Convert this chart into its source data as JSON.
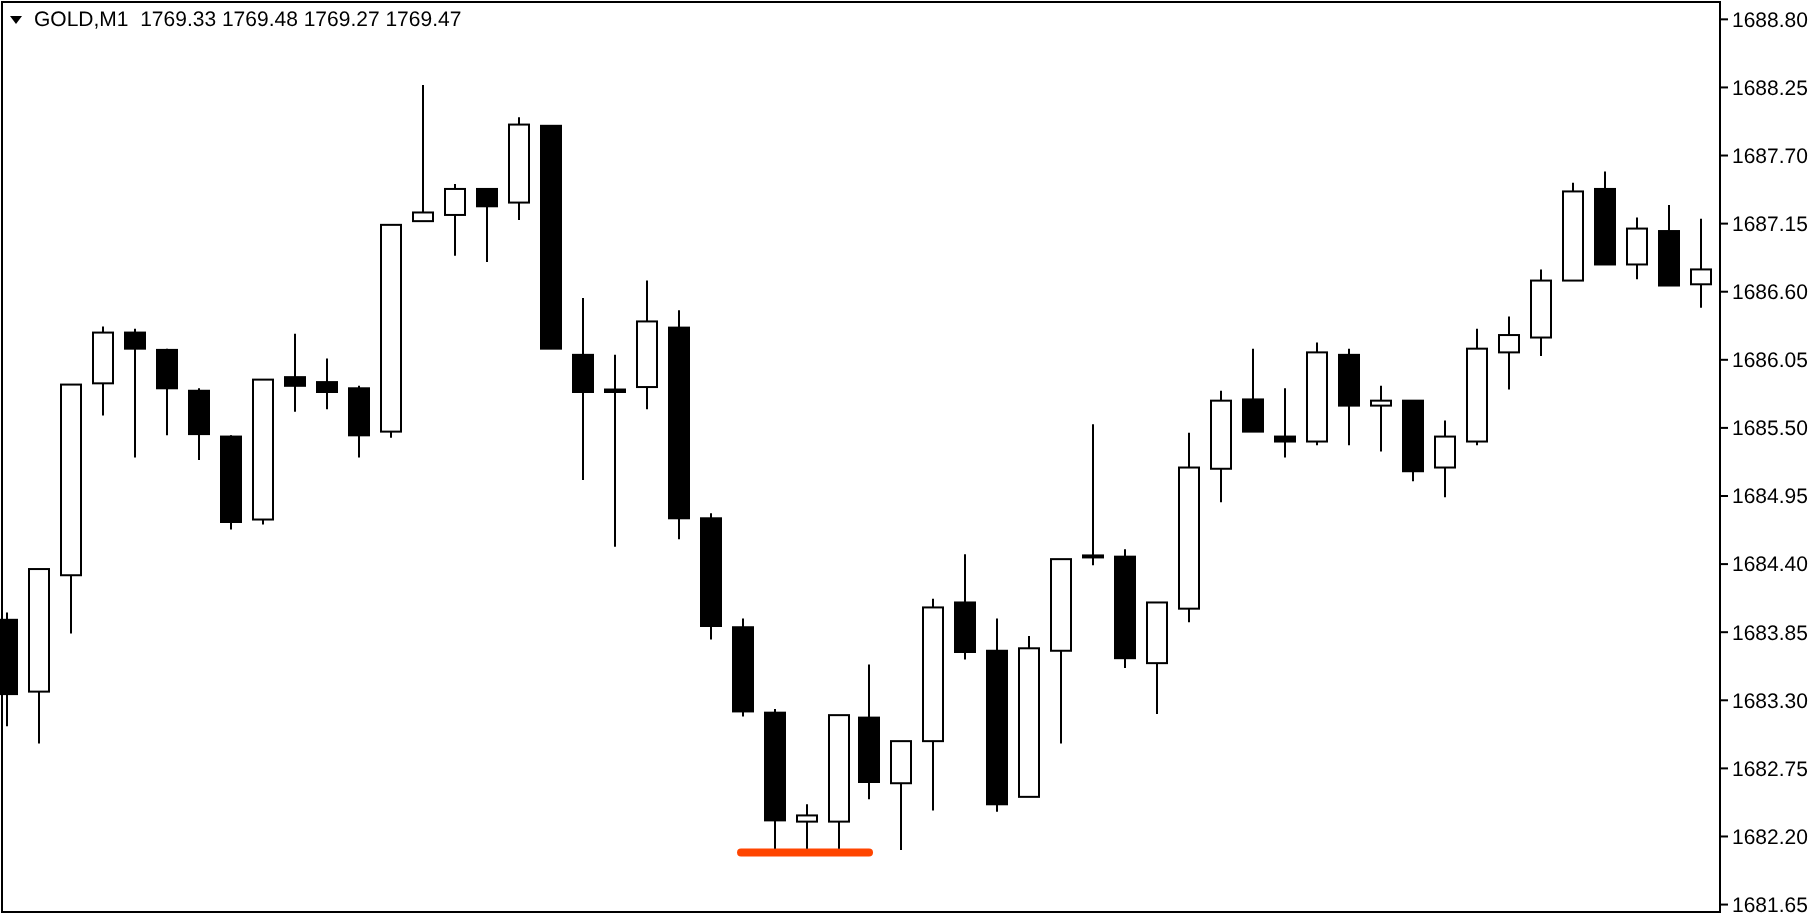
{
  "chart_data": {
    "type": "candlestick",
    "title": "GOLD,M1  1769.33 1769.48 1769.27 1769.47",
    "categories": [
      null,
      null,
      null,
      null,
      null,
      null,
      null,
      null,
      null,
      null,
      null,
      null,
      null,
      null,
      null,
      null,
      null,
      null,
      null,
      null,
      null,
      null,
      null,
      null,
      null,
      null,
      null,
      null,
      null,
      null,
      null,
      null,
      null,
      null,
      null,
      null,
      null,
      null,
      null,
      null,
      null,
      null,
      null,
      null,
      null,
      null,
      null,
      null,
      null,
      null,
      null,
      null,
      null,
      null
    ],
    "ohlc": [
      [
        1683.95,
        1684.01,
        1683.09,
        1683.35
      ],
      [
        1683.37,
        1684.36,
        1682.95,
        1684.36
      ],
      [
        1684.31,
        1685.85,
        1683.84,
        1685.85
      ],
      [
        1685.86,
        1686.32,
        1685.6,
        1686.27
      ],
      [
        1686.27,
        1686.3,
        1685.26,
        1686.14
      ],
      [
        1686.13,
        1686.14,
        1685.44,
        1685.82
      ],
      [
        1685.8,
        1685.82,
        1685.24,
        1685.45
      ],
      [
        1685.43,
        1685.44,
        1684.68,
        1684.74
      ],
      [
        1684.76,
        1685.89,
        1684.72,
        1685.89
      ],
      [
        1685.91,
        1686.26,
        1685.63,
        1685.84
      ],
      [
        1685.87,
        1686.06,
        1685.65,
        1685.79
      ],
      [
        1685.82,
        1685.84,
        1685.26,
        1685.44
      ],
      [
        1685.47,
        1687.14,
        1685.42,
        1687.14
      ],
      [
        1687.17,
        1688.27,
        1687.17,
        1687.24
      ],
      [
        1687.22,
        1687.47,
        1686.89,
        1687.43
      ],
      [
        1687.43,
        1687.43,
        1686.84,
        1687.29
      ],
      [
        1687.32,
        1688.01,
        1687.18,
        1687.95
      ],
      [
        1687.94,
        1687.94,
        1686.14,
        1686.14
      ],
      [
        1686.09,
        1686.55,
        1685.08,
        1685.79
      ],
      [
        1685.81,
        1686.09,
        1684.54,
        1685.79
      ],
      [
        1685.83,
        1686.69,
        1685.65,
        1686.36
      ],
      [
        1686.31,
        1686.45,
        1684.6,
        1684.77
      ],
      [
        1684.77,
        1684.81,
        1683.79,
        1683.9
      ],
      [
        1683.89,
        1683.96,
        1683.17,
        1683.21
      ],
      [
        1683.2,
        1683.23,
        1682.1,
        1682.33
      ],
      [
        1682.32,
        1682.46,
        1682.1,
        1682.37
      ],
      [
        1682.32,
        1683.18,
        1682.1,
        1683.18
      ],
      [
        1683.16,
        1683.59,
        1682.5,
        1682.64
      ],
      [
        1682.63,
        1682.97,
        1682.09,
        1682.97
      ],
      [
        1682.97,
        1684.12,
        1682.41,
        1684.05
      ],
      [
        1684.09,
        1684.48,
        1683.63,
        1683.69
      ],
      [
        1683.7,
        1683.96,
        1682.4,
        1682.46
      ],
      [
        1682.52,
        1683.82,
        1682.52,
        1683.72
      ],
      [
        1683.7,
        1684.44,
        1682.95,
        1684.44
      ],
      [
        1684.47,
        1685.53,
        1684.39,
        1684.47
      ],
      [
        1684.46,
        1684.52,
        1683.56,
        1683.64
      ],
      [
        1683.6,
        1684.09,
        1683.19,
        1684.09
      ],
      [
        1684.04,
        1685.46,
        1683.93,
        1685.18
      ],
      [
        1685.17,
        1685.8,
        1684.9,
        1685.72
      ],
      [
        1685.73,
        1686.14,
        1685.47,
        1685.47
      ],
      [
        1685.43,
        1685.82,
        1685.26,
        1685.39
      ],
      [
        1685.39,
        1686.19,
        1685.36,
        1686.11
      ],
      [
        1686.09,
        1686.14,
        1685.36,
        1685.68
      ],
      [
        1685.68,
        1685.84,
        1685.31,
        1685.72
      ],
      [
        1685.72,
        1685.72,
        1685.07,
        1685.15
      ],
      [
        1685.18,
        1685.56,
        1684.94,
        1685.43
      ],
      [
        1685.39,
        1686.3,
        1685.36,
        1686.14
      ],
      [
        1686.11,
        1686.4,
        1685.81,
        1686.25
      ],
      [
        1686.23,
        1686.78,
        1686.08,
        1686.69
      ],
      [
        1686.69,
        1687.48,
        1686.69,
        1687.41
      ],
      [
        1687.43,
        1687.57,
        1686.82,
        1686.82
      ],
      [
        1686.82,
        1687.2,
        1686.7,
        1687.11
      ],
      [
        1687.09,
        1687.3,
        1686.65,
        1686.65
      ],
      [
        1686.66,
        1687.19,
        1686.47,
        1686.78
      ]
    ],
    "series": [
      {
        "type": "line",
        "color": "#ff4500",
        "values": [
          null,
          null,
          null,
          null,
          null,
          null,
          null,
          null,
          null,
          null,
          null,
          null,
          null,
          null,
          null,
          null,
          null,
          null,
          null,
          null,
          null,
          null,
          null,
          1682.07,
          1682.07,
          1682.07,
          1682.07,
          1682.07,
          null,
          null,
          null,
          null,
          null,
          null,
          null,
          null,
          null,
          null,
          null,
          null,
          null,
          null,
          null,
          null,
          null,
          null,
          null,
          null,
          null,
          null,
          null,
          null,
          null,
          null
        ]
      }
    ],
    "ylim": [
      1681.59,
      1688.94
    ],
    "yticks": [
      1681.65,
      {
        "value": 1682.2,
        "label": "1682.20"
      },
      1682.75,
      {
        "value": 1683.3,
        "label": "1683.30"
      },
      1683.85,
      {
        "value": 1684.4,
        "label": "1684.40"
      },
      1684.95,
      {
        "value": 1685.5,
        "label": "1685.50"
      },
      1686.05,
      {
        "value": 1686.6,
        "label": "1686.60"
      },
      1687.15,
      {
        "value": 1687.7,
        "label": "1687.70"
      },
      1688.25,
      {
        "value": 1688.8,
        "label": "1688.80"
      }
    ],
    "tick_labels": "y",
    "grid": false
  }
}
